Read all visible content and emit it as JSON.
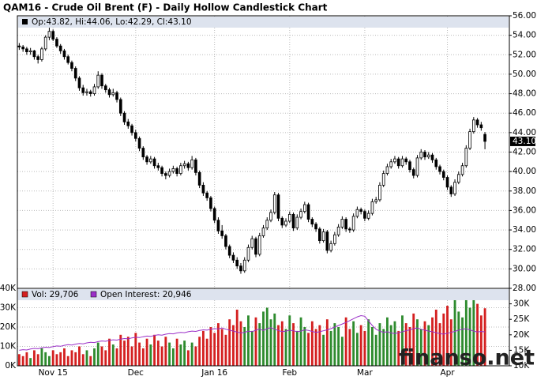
{
  "chart_data": {
    "type": "candlestick",
    "title": "QAM16 - Crude Oil Brent (F) - Daily Hollow Candlestick Chart",
    "info_label": "Op:43.82, Hi:44.06, Lo:42.29, Cl:43.10",
    "last_price": {
      "value": 43.1,
      "label": "43.10"
    },
    "watermark": "finanso.net",
    "xlim": [
      -0.5,
      130.5
    ],
    "xticks": [
      {
        "value": 9,
        "label": "Nov 15"
      },
      {
        "value": 31,
        "label": "Dec"
      },
      {
        "value": 52,
        "label": "Jan 16"
      },
      {
        "value": 72,
        "label": "Feb"
      },
      {
        "value": 92,
        "label": "Mar"
      },
      {
        "value": 114,
        "label": "Apr"
      }
    ],
    "ylim": [
      28,
      56
    ],
    "yticks": [
      {
        "value": 28,
        "label": "28.00"
      },
      {
        "value": 30,
        "label": "30.00"
      },
      {
        "value": 32,
        "label": "32.00"
      },
      {
        "value": 34,
        "label": "34.00"
      },
      {
        "value": 36,
        "label": "36.00"
      },
      {
        "value": 38,
        "label": "38.00"
      },
      {
        "value": 40,
        "label": "40.00"
      },
      {
        "value": 42,
        "label": "42.00"
      },
      {
        "value": 44,
        "label": "44.00"
      },
      {
        "value": 46,
        "label": "46.00"
      },
      {
        "value": 48,
        "label": "48.00"
      },
      {
        "value": 50,
        "label": "50.00"
      },
      {
        "value": 52,
        "label": "52.00"
      },
      {
        "value": 54,
        "label": "54.00"
      },
      {
        "value": 56,
        "label": "56.00"
      }
    ],
    "grid": true,
    "up_color": "#ffffff",
    "down_color": "#000000",
    "candles": [
      [
        52.9,
        53.2,
        52.5,
        52.8
      ],
      [
        52.8,
        53.0,
        52.3,
        52.6
      ],
      [
        52.6,
        52.8,
        52.0,
        52.3
      ],
      [
        52.3,
        52.7,
        52.0,
        52.4
      ],
      [
        52.4,
        52.5,
        51.5,
        51.8
      ],
      [
        51.8,
        52.0,
        51.1,
        51.5
      ],
      [
        51.5,
        52.8,
        51.3,
        52.6
      ],
      [
        52.6,
        54.0,
        52.4,
        53.8
      ],
      [
        53.8,
        54.8,
        53.5,
        54.4
      ],
      [
        54.4,
        54.6,
        53.4,
        53.6
      ],
      [
        53.6,
        53.8,
        52.7,
        52.9
      ],
      [
        52.9,
        53.1,
        52.1,
        52.4
      ],
      [
        52.4,
        52.6,
        51.5,
        51.8
      ],
      [
        51.8,
        52.0,
        51.0,
        51.2
      ],
      [
        51.2,
        51.4,
        50.3,
        50.6
      ],
      [
        50.6,
        50.8,
        49.3,
        49.6
      ],
      [
        49.6,
        49.8,
        48.3,
        48.6
      ],
      [
        48.6,
        48.9,
        47.8,
        48.1
      ],
      [
        48.1,
        48.5,
        47.8,
        48.2
      ],
      [
        48.2,
        48.4,
        47.7,
        48.0
      ],
      [
        48.0,
        49.0,
        47.8,
        48.7
      ],
      [
        48.7,
        50.3,
        48.5,
        49.9
      ],
      [
        49.9,
        50.1,
        48.5,
        48.8
      ],
      [
        48.8,
        49.0,
        48.1,
        48.4
      ],
      [
        48.4,
        48.6,
        47.6,
        47.9
      ],
      [
        47.9,
        48.5,
        47.7,
        48.1
      ],
      [
        48.1,
        48.3,
        47.1,
        47.4
      ],
      [
        47.4,
        47.6,
        45.7,
        46.0
      ],
      [
        46.0,
        46.2,
        44.8,
        45.1
      ],
      [
        45.1,
        45.4,
        44.4,
        44.7
      ],
      [
        44.7,
        44.9,
        43.7,
        44.0
      ],
      [
        44.0,
        44.3,
        43.1,
        43.4
      ],
      [
        43.4,
        43.6,
        42.1,
        42.4
      ],
      [
        42.4,
        42.6,
        41.2,
        41.5
      ],
      [
        41.5,
        41.7,
        40.7,
        41.0
      ],
      [
        41.0,
        41.6,
        40.8,
        41.3
      ],
      [
        41.3,
        41.5,
        40.3,
        40.6
      ],
      [
        40.6,
        40.9,
        40.1,
        40.4
      ],
      [
        40.4,
        40.6,
        39.5,
        39.8
      ],
      [
        39.8,
        40.0,
        39.2,
        39.6
      ],
      [
        39.6,
        40.3,
        39.4,
        40.0
      ],
      [
        40.0,
        40.6,
        39.8,
        40.3
      ],
      [
        40.3,
        40.5,
        39.5,
        39.8
      ],
      [
        39.8,
        40.9,
        39.6,
        40.6
      ],
      [
        40.6,
        41.1,
        40.3,
        40.8
      ],
      [
        40.8,
        41.0,
        40.1,
        40.4
      ],
      [
        40.4,
        41.6,
        40.2,
        41.2
      ],
      [
        41.2,
        41.4,
        39.6,
        39.9
      ],
      [
        39.9,
        40.1,
        38.3,
        38.6
      ],
      [
        38.6,
        38.9,
        37.5,
        37.8
      ],
      [
        37.8,
        38.0,
        37.0,
        37.3
      ],
      [
        37.3,
        37.5,
        35.9,
        36.2
      ],
      [
        36.2,
        36.4,
        34.7,
        35.0
      ],
      [
        35.0,
        35.3,
        33.6,
        33.9
      ],
      [
        33.9,
        34.5,
        33.1,
        33.4
      ],
      [
        33.4,
        33.6,
        32.0,
        32.3
      ],
      [
        32.3,
        32.5,
        31.1,
        31.4
      ],
      [
        31.4,
        31.7,
        30.6,
        30.9
      ],
      [
        30.9,
        31.2,
        30.0,
        30.3
      ],
      [
        30.3,
        30.6,
        29.5,
        29.8
      ],
      [
        29.8,
        31.2,
        29.6,
        30.9
      ],
      [
        30.9,
        32.5,
        30.7,
        32.2
      ],
      [
        32.2,
        33.4,
        32.0,
        33.1
      ],
      [
        33.1,
        33.3,
        31.2,
        31.5
      ],
      [
        31.5,
        33.7,
        31.3,
        33.4
      ],
      [
        33.4,
        34.5,
        33.2,
        34.2
      ],
      [
        34.2,
        35.3,
        34.0,
        35.0
      ],
      [
        35.0,
        36.1,
        34.8,
        35.8
      ],
      [
        35.8,
        37.9,
        35.6,
        37.6
      ],
      [
        37.6,
        37.8,
        34.9,
        35.2
      ],
      [
        35.2,
        35.4,
        34.2,
        34.5
      ],
      [
        34.5,
        35.2,
        34.3,
        34.9
      ],
      [
        34.9,
        35.9,
        34.7,
        35.6
      ],
      [
        35.6,
        35.8,
        33.9,
        34.2
      ],
      [
        34.2,
        35.6,
        34.0,
        35.3
      ],
      [
        35.3,
        36.2,
        35.1,
        35.9
      ],
      [
        35.9,
        36.9,
        35.7,
        36.6
      ],
      [
        36.6,
        36.8,
        34.8,
        35.1
      ],
      [
        35.1,
        35.3,
        34.3,
        34.6
      ],
      [
        34.6,
        34.8,
        33.8,
        34.1
      ],
      [
        34.1,
        34.3,
        32.6,
        32.9
      ],
      [
        32.9,
        34.1,
        32.7,
        33.8
      ],
      [
        33.8,
        34.0,
        31.6,
        31.9
      ],
      [
        31.9,
        32.9,
        31.7,
        32.6
      ],
      [
        32.6,
        33.8,
        32.4,
        33.5
      ],
      [
        33.5,
        34.6,
        33.3,
        34.3
      ],
      [
        34.3,
        35.4,
        34.1,
        35.1
      ],
      [
        35.1,
        35.3,
        33.8,
        34.1
      ],
      [
        34.1,
        34.3,
        33.7,
        34.0
      ],
      [
        34.0,
        35.7,
        33.8,
        35.4
      ],
      [
        35.4,
        36.4,
        35.2,
        36.1
      ],
      [
        36.1,
        36.3,
        35.6,
        35.9
      ],
      [
        35.9,
        36.1,
        34.9,
        35.2
      ],
      [
        35.2,
        36.0,
        35.0,
        35.7
      ],
      [
        35.7,
        37.2,
        35.5,
        36.9
      ],
      [
        36.9,
        37.4,
        36.7,
        37.1
      ],
      [
        37.1,
        38.9,
        36.9,
        38.6
      ],
      [
        38.6,
        40.1,
        38.4,
        39.8
      ],
      [
        39.8,
        40.8,
        39.6,
        40.5
      ],
      [
        40.5,
        41.3,
        40.3,
        41.0
      ],
      [
        41.0,
        41.6,
        40.8,
        41.3
      ],
      [
        41.3,
        41.5,
        40.3,
        40.6
      ],
      [
        40.6,
        41.6,
        40.4,
        41.3
      ],
      [
        41.3,
        41.5,
        40.7,
        41.0
      ],
      [
        41.0,
        41.2,
        39.9,
        40.2
      ],
      [
        40.2,
        40.4,
        39.3,
        39.6
      ],
      [
        39.6,
        41.7,
        39.4,
        41.4
      ],
      [
        41.4,
        42.3,
        41.2,
        42.0
      ],
      [
        42.0,
        42.2,
        41.2,
        41.5
      ],
      [
        41.5,
        42.0,
        41.3,
        41.7
      ],
      [
        41.7,
        41.9,
        40.9,
        41.2
      ],
      [
        41.2,
        41.4,
        40.2,
        40.5
      ],
      [
        40.5,
        40.7,
        39.7,
        40.0
      ],
      [
        40.0,
        40.2,
        39.1,
        39.4
      ],
      [
        39.4,
        39.6,
        38.1,
        38.4
      ],
      [
        38.4,
        38.6,
        37.4,
        37.7
      ],
      [
        37.7,
        39.2,
        37.5,
        38.9
      ],
      [
        38.9,
        40.0,
        38.7,
        39.7
      ],
      [
        39.7,
        40.9,
        39.5,
        40.6
      ],
      [
        40.6,
        42.7,
        40.4,
        42.4
      ],
      [
        42.4,
        44.4,
        42.2,
        44.1
      ],
      [
        44.1,
        45.6,
        43.9,
        45.3
      ],
      [
        45.3,
        45.5,
        44.5,
        44.8
      ],
      [
        44.8,
        45.1,
        44.2,
        44.5
      ],
      [
        43.82,
        44.06,
        42.29,
        43.1
      ]
    ],
    "volume": {
      "name": "Vol: 29,706",
      "up_color": "#2e8b2e",
      "down_color": "#d42020",
      "ylim": [
        0,
        40000
      ],
      "yticks": [
        {
          "value": 0,
          "label": "0K"
        },
        {
          "value": 10000,
          "label": "10K"
        },
        {
          "value": 20000,
          "label": "20K"
        },
        {
          "value": 30000,
          "label": "30K"
        },
        {
          "value": 40000,
          "label": "40K"
        }
      ],
      "values": [
        6000,
        5000,
        7000,
        4000,
        8000,
        6000,
        9000,
        7000,
        5000,
        8000,
        6000,
        7000,
        9000,
        5000,
        8000,
        7000,
        10000,
        6000,
        8000,
        5000,
        9000,
        12000,
        10000,
        8000,
        14000,
        11000,
        9000,
        16000,
        13000,
        15000,
        10000,
        17000,
        12000,
        9000,
        14000,
        11000,
        16000,
        13000,
        10000,
        15000,
        12000,
        9000,
        14000,
        11000,
        13000,
        8000,
        12000,
        10000,
        15000,
        18000,
        14000,
        20000,
        17000,
        22000,
        19000,
        16000,
        24000,
        21000,
        29000,
        23000,
        20000,
        26000,
        18000,
        25000,
        22000,
        28000,
        30000,
        24000,
        27000,
        21000,
        23000,
        19000,
        26000,
        22000,
        18000,
        25000,
        20000,
        17000,
        23000,
        19000,
        21000,
        16000,
        24000,
        18000,
        22000,
        20000,
        15000,
        25000,
        19000,
        23000,
        17000,
        21000,
        18000,
        24000,
        20000,
        16000,
        22000,
        19000,
        25000,
        21000,
        23000,
        18000,
        26000,
        22000,
        20000,
        27000,
        24000,
        19000,
        23000,
        21000,
        25000,
        29000,
        22000,
        27000,
        31000,
        24000,
        34000,
        28000,
        25000,
        35000,
        30000,
        36000,
        32000,
        26000,
        29706
      ]
    },
    "open_interest": {
      "name": "Open Interest: 20,946",
      "color": "#9b30c8",
      "axis": "y2",
      "y2lim": [
        10000,
        35000
      ],
      "y2ticks": [
        {
          "value": 10000,
          "label": "10K"
        },
        {
          "value": 15000,
          "label": "15K"
        },
        {
          "value": 20000,
          "label": "20K"
        },
        {
          "value": 25000,
          "label": "25K"
        },
        {
          "value": 30000,
          "label": "30K"
        }
      ],
      "values": [
        15000,
        15200,
        15100,
        15400,
        15600,
        15500,
        15800,
        16000,
        15900,
        16200,
        16400,
        16300,
        16600,
        16800,
        16700,
        17000,
        17200,
        17100,
        17400,
        17600,
        17500,
        17800,
        18000,
        17900,
        18200,
        18400,
        18300,
        18600,
        18800,
        18700,
        19000,
        19200,
        19100,
        19400,
        19600,
        19500,
        19800,
        20000,
        19900,
        20200,
        20400,
        20300,
        20600,
        20800,
        20700,
        21000,
        21200,
        21100,
        21400,
        21600,
        21500,
        21800,
        22000,
        21900,
        22200,
        21800,
        21500,
        21200,
        20900,
        20600,
        20800,
        21200,
        21000,
        21500,
        21900,
        21400,
        22000,
        22300,
        21800,
        21400,
        21000,
        21200,
        21500,
        21300,
        21000,
        21200,
        21600,
        21400,
        21100,
        20800,
        21000,
        21300,
        21600,
        22000,
        22500,
        23000,
        23500,
        24000,
        24600,
        25200,
        25800,
        26200,
        26000,
        24500,
        23000,
        21800,
        21200,
        20800,
        21000,
        20600,
        20400,
        20700,
        21000,
        21300,
        21600,
        22000,
        22200,
        21800,
        21500,
        21200,
        21000,
        20700,
        20400,
        20200,
        20500,
        20800,
        21100,
        21500,
        21800,
        22000,
        21600,
        21200,
        20900,
        21100,
        20946
      ]
    }
  }
}
